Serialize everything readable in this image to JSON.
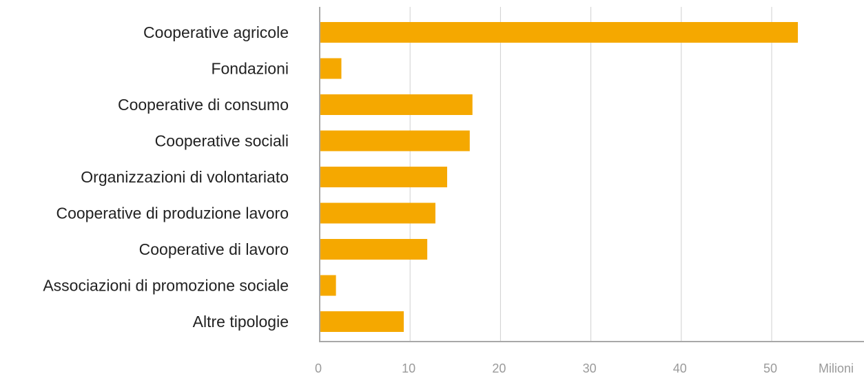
{
  "chart_data": {
    "type": "bar",
    "orientation": "horizontal",
    "categories": [
      "Cooperative agricole",
      "Fondazioni",
      "Cooperative di consumo",
      "Cooperative sociali",
      "Organizzazioni di volontariato",
      "Cooperative di produzione lavoro",
      "Cooperative di lavoro",
      "Associazioni di promozione sociale",
      "Altre tipologie"
    ],
    "values": [
      52.9,
      2.4,
      16.9,
      16.6,
      14.1,
      12.8,
      11.9,
      1.8,
      9.3
    ],
    "xticks": [
      0,
      10,
      20,
      30,
      40,
      50
    ],
    "xlim": [
      0,
      60
    ],
    "unit_label": "Milioni",
    "grid": true,
    "legend": "none",
    "bar_color": "#F5A800"
  }
}
